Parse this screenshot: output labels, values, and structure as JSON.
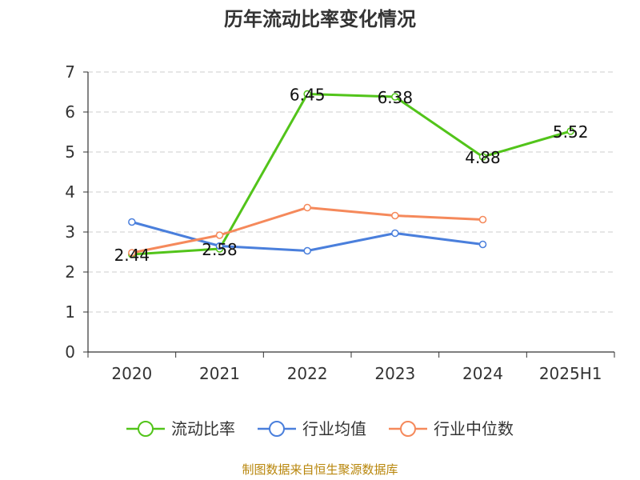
{
  "chart_data": {
    "type": "line",
    "title": "历年流动比率变化情况",
    "categories": [
      "2020",
      "2021",
      "2022",
      "2023",
      "2024",
      "2025H1"
    ],
    "y_ticks": [
      "0",
      "1",
      "2",
      "3",
      "4",
      "5",
      "6",
      "7"
    ],
    "ylim": [
      0,
      7
    ],
    "grid": true,
    "legend_position": "bottom",
    "series": [
      {
        "name": "流动比率",
        "color": "#52c41a",
        "values": [
          2.44,
          2.58,
          6.45,
          6.38,
          4.88,
          5.52
        ],
        "labels": [
          "2.44",
          "2.58",
          "6.45",
          "6.38",
          "4.88",
          "5.52"
        ]
      },
      {
        "name": "行业均值",
        "color": "#4a7fdc",
        "values": [
          3.25,
          2.65,
          2.53,
          2.97,
          2.69,
          null
        ]
      },
      {
        "name": "行业中位数",
        "color": "#f5895b",
        "values": [
          2.48,
          2.92,
          3.61,
          3.41,
          3.31,
          null
        ]
      }
    ]
  },
  "source": "制图数据来自恒生聚源数据库"
}
